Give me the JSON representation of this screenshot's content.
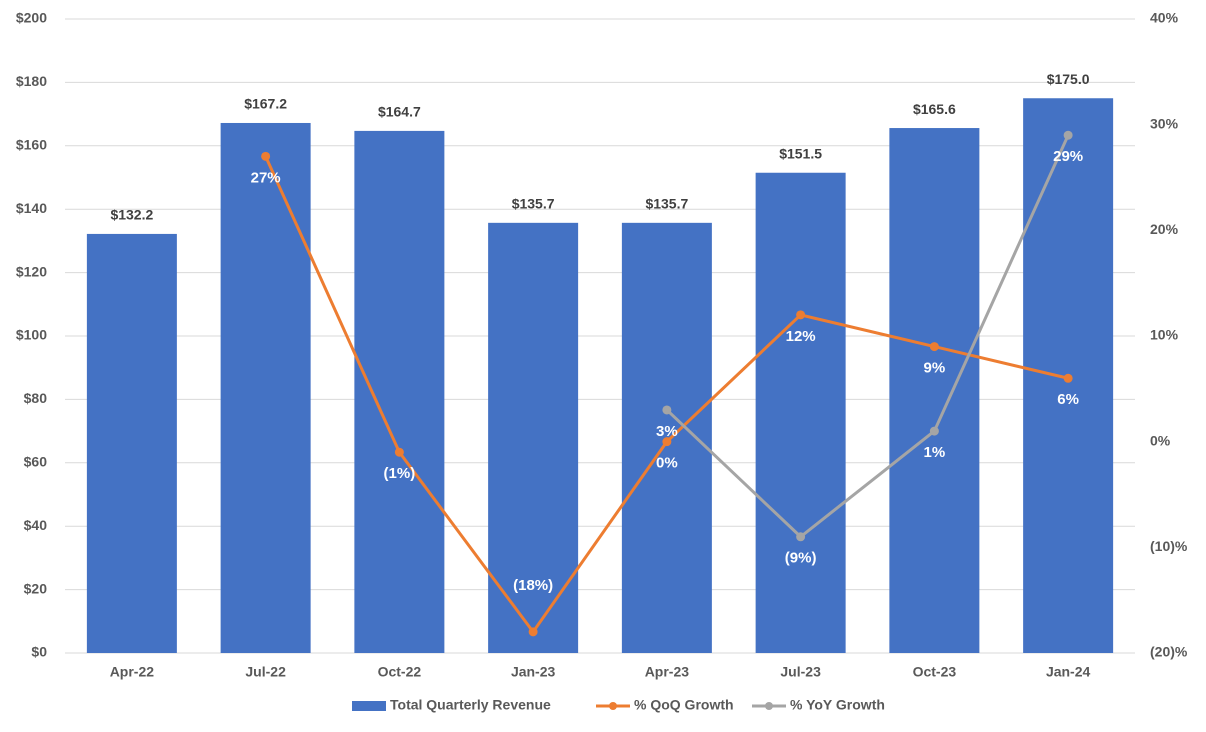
{
  "chart_data": {
    "type": "combo",
    "categories": [
      "Apr-22",
      "Jul-22",
      "Oct-22",
      "Jan-23",
      "Apr-23",
      "Jul-23",
      "Oct-23",
      "Jan-24"
    ],
    "series": [
      {
        "name": "Total Quarterly Revenue",
        "type": "bar",
        "color": "#4472c4",
        "values": [
          132.2,
          167.2,
          164.7,
          135.7,
          135.7,
          151.5,
          165.6,
          175.0
        ],
        "value_labels": [
          "$132.2",
          "$167.2",
          "$164.7",
          "$135.7",
          "$135.7",
          "$151.5",
          "$165.6",
          "$175.0"
        ]
      },
      {
        "name": "% QoQ Growth",
        "type": "line",
        "axis": "y2",
        "color": "#ed7d31",
        "values": [
          null,
          27,
          -1,
          -18,
          0,
          12,
          9,
          6
        ],
        "value_labels": [
          null,
          "27%",
          "(1%)",
          "(18%)",
          "0%",
          "12%",
          "9%",
          "6%"
        ]
      },
      {
        "name": "% YoY Growth",
        "type": "line",
        "axis": "y2",
        "color": "#a5a5a5",
        "values": [
          null,
          null,
          null,
          null,
          3,
          -9,
          1,
          29
        ],
        "value_labels": [
          null,
          null,
          null,
          null,
          "3%",
          "(9%)",
          "1%",
          "29%"
        ]
      }
    ],
    "ylim": [
      0,
      200
    ],
    "yticks": [
      {
        "value": 0,
        "label": "$0"
      },
      {
        "value": 20,
        "label": "$20"
      },
      {
        "value": 40,
        "label": "$40"
      },
      {
        "value": 60,
        "label": "$60"
      },
      {
        "value": 80,
        "label": "$80"
      },
      {
        "value": 100,
        "label": "$100"
      },
      {
        "value": 120,
        "label": "$120"
      },
      {
        "value": 140,
        "label": "$140"
      },
      {
        "value": 160,
        "label": "$160"
      },
      {
        "value": 180,
        "label": "$180"
      },
      {
        "value": 200,
        "label": "$200"
      }
    ],
    "y2lim": [
      -20,
      40
    ],
    "y2ticks": [
      {
        "value": -20,
        "label": "(20)%"
      },
      {
        "value": -10,
        "label": "(10)%"
      },
      {
        "value": 0,
        "label": "0%"
      },
      {
        "value": 10,
        "label": "10%"
      },
      {
        "value": 20,
        "label": "20%"
      },
      {
        "value": 30,
        "label": "30%"
      },
      {
        "value": 40,
        "label": "40%"
      }
    ],
    "grid": true,
    "legend": "bottom"
  }
}
